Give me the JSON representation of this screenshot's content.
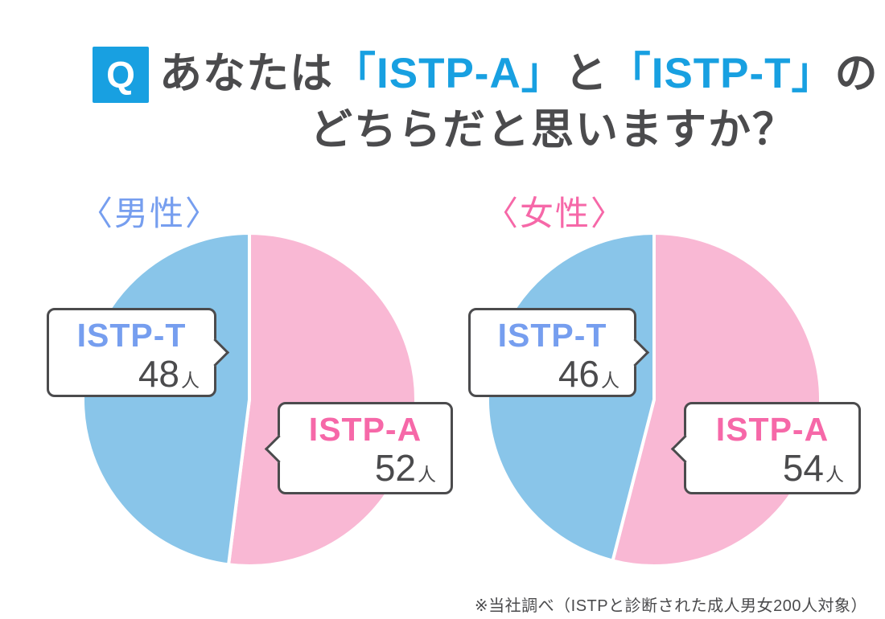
{
  "header": {
    "q_badge": "Q",
    "title": {
      "prefix": "あなたは",
      "istp_a": "「ISTP-A」",
      "and": "と",
      "istp_t": "「ISTP-T」",
      "suffix": "の",
      "line2": "どちらだと思いますか？"
    }
  },
  "charts": [
    {
      "group_label": "〈男性〉",
      "callouts": {
        "t": {
          "label": "ISTP-T",
          "value": "48",
          "unit": "人"
        },
        "a": {
          "label": "ISTP-A",
          "value": "52",
          "unit": "人"
        }
      }
    },
    {
      "group_label": "〈女性〉",
      "callouts": {
        "t": {
          "label": "ISTP-T",
          "value": "46",
          "unit": "人"
        },
        "a": {
          "label": "ISTP-A",
          "value": "54",
          "unit": "人"
        }
      }
    }
  ],
  "footnote": "※当社調べ（ISTPと診断された成人男女200人対象）",
  "colors": {
    "accent_blue": "#18A0E1",
    "label_blue": "#769EEF",
    "label_pink": "#F668A8",
    "pie_blue": "#89C5E9",
    "pie_pink": "#F9B8D4",
    "text_dark": "#4B4B4D"
  },
  "chart_data": [
    {
      "type": "pie",
      "title": "〈男性〉",
      "labels": [
        "ISTP-A",
        "ISTP-T"
      ],
      "values": [
        52,
        48
      ],
      "unit": "人",
      "total": 100,
      "slice_colors": [
        "#F9B8D4",
        "#89C5E9"
      ],
      "start_angle_deg": 0,
      "direction": "clockwise",
      "legend_position": "callouts",
      "annotations": [
        "ISTP-T 48人",
        "ISTP-A 52人"
      ]
    },
    {
      "type": "pie",
      "title": "〈女性〉",
      "labels": [
        "ISTP-A",
        "ISTP-T"
      ],
      "values": [
        54,
        46
      ],
      "unit": "人",
      "total": 100,
      "slice_colors": [
        "#F9B8D4",
        "#89C5E9"
      ],
      "start_angle_deg": 0,
      "direction": "clockwise",
      "legend_position": "callouts",
      "annotations": [
        "ISTP-T 46人",
        "ISTP-A 54人"
      ]
    }
  ]
}
